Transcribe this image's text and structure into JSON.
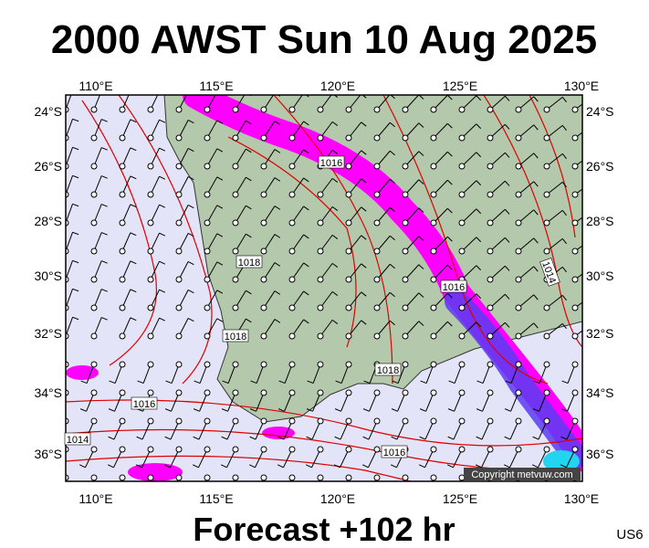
{
  "title": "2000 AWST Sun 10 Aug 2025",
  "footer": "Forecast +102 hr",
  "code": "US6",
  "copyright": "Copyright metvuw.com",
  "longitude_labels": [
    "110°E",
    "115°E",
    "120°E",
    "125°E",
    "130°E"
  ],
  "latitude_labels": [
    "24°S",
    "26°S",
    "28°S",
    "30°S",
    "32°S",
    "34°S",
    "36°S"
  ],
  "isobar_labels": [
    "1016",
    "1018",
    "1016",
    "1014",
    "1018",
    "1018",
    "1016",
    "1014",
    "1016"
  ]
}
